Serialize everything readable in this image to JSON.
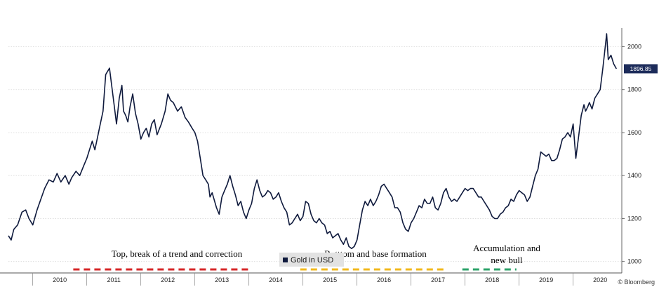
{
  "chart_data": {
    "type": "line",
    "title": "",
    "xlabel": "",
    "ylabel": "",
    "ylim": [
      950,
      2080
    ],
    "xlim": [
      2009.55,
      2020.9
    ],
    "y_ticks": [
      1000,
      1200,
      1400,
      1600,
      1800,
      2000
    ],
    "y_tick_labels": [
      "1000",
      "1200",
      "1400",
      "1600",
      "1800",
      "2000"
    ],
    "x_year_labels": [
      "2010",
      "2011",
      "2012",
      "2013",
      "2014",
      "2015",
      "2016",
      "2017",
      "2018",
      "2019",
      "2020"
    ],
    "grid": true,
    "legend": "bottom-center",
    "last_value_label": "1896.85",
    "series": [
      {
        "name": "Gold in USD",
        "color": "#0f1a3d",
        "x": [
          2009.55,
          2009.6,
          2009.65,
          2009.72,
          2009.8,
          2009.87,
          2009.93,
          2010.0,
          2010.08,
          2010.15,
          2010.22,
          2010.3,
          2010.38,
          2010.45,
          2010.52,
          2010.6,
          2010.67,
          2010.72,
          2010.8,
          2010.87,
          2010.95,
          2011.0,
          2011.05,
          2011.1,
          2011.15,
          2011.2,
          2011.25,
          2011.3,
          2011.35,
          2011.42,
          2011.5,
          2011.55,
          2011.6,
          2011.65,
          2011.68,
          2011.72,
          2011.76,
          2011.8,
          2011.85,
          2011.9,
          2011.95,
          2012.0,
          2012.05,
          2012.1,
          2012.15,
          2012.2,
          2012.25,
          2012.3,
          2012.38,
          2012.45,
          2012.5,
          2012.55,
          2012.6,
          2012.68,
          2012.75,
          2012.82,
          2012.88,
          2012.95,
          2013.0,
          2013.05,
          2013.1,
          2013.15,
          2013.2,
          2013.25,
          2013.28,
          2013.32,
          2013.4,
          2013.45,
          2013.5,
          2013.55,
          2013.6,
          2013.65,
          2013.7,
          2013.75,
          2013.8,
          2013.85,
          2013.9,
          2013.95,
          2014.0,
          2014.05,
          2014.1,
          2014.15,
          2014.2,
          2014.25,
          2014.3,
          2014.35,
          2014.4,
          2014.45,
          2014.5,
          2014.55,
          2014.6,
          2014.65,
          2014.7,
          2014.75,
          2014.8,
          2014.85,
          2014.9,
          2014.95,
          2015.0,
          2015.05,
          2015.1,
          2015.15,
          2015.2,
          2015.25,
          2015.3,
          2015.35,
          2015.4,
          2015.45,
          2015.5,
          2015.55,
          2015.6,
          2015.65,
          2015.7,
          2015.75,
          2015.8,
          2015.85,
          2015.9,
          2015.95,
          2016.0,
          2016.05,
          2016.1,
          2016.15,
          2016.2,
          2016.25,
          2016.3,
          2016.35,
          2016.4,
          2016.45,
          2016.5,
          2016.55,
          2016.6,
          2016.65,
          2016.7,
          2016.75,
          2016.8,
          2016.85,
          2016.9,
          2016.95,
          2017.0,
          2017.05,
          2017.1,
          2017.15,
          2017.2,
          2017.25,
          2017.3,
          2017.35,
          2017.4,
          2017.45,
          2017.5,
          2017.55,
          2017.6,
          2017.65,
          2017.7,
          2017.75,
          2017.8,
          2017.85,
          2017.9,
          2017.95,
          2018.0,
          2018.05,
          2018.1,
          2018.15,
          2018.2,
          2018.25,
          2018.3,
          2018.35,
          2018.4,
          2018.45,
          2018.5,
          2018.55,
          2018.6,
          2018.65,
          2018.7,
          2018.75,
          2018.8,
          2018.85,
          2018.9,
          2018.95,
          2019.0,
          2019.05,
          2019.1,
          2019.15,
          2019.2,
          2019.25,
          2019.3,
          2019.35,
          2019.4,
          2019.45,
          2019.5,
          2019.55,
          2019.6,
          2019.65,
          2019.7,
          2019.75,
          2019.8,
          2019.85,
          2019.9,
          2019.95,
          2020.0,
          2020.05,
          2020.1,
          2020.15,
          2020.2,
          2020.23,
          2020.27,
          2020.3,
          2020.35,
          2020.4,
          2020.45,
          2020.5,
          2020.55,
          2020.58,
          2020.62,
          2020.65,
          2020.7,
          2020.75,
          2020.8
        ],
        "values": [
          1120,
          1100,
          1150,
          1170,
          1230,
          1240,
          1200,
          1170,
          1240,
          1290,
          1340,
          1380,
          1370,
          1410,
          1370,
          1400,
          1360,
          1390,
          1420,
          1400,
          1450,
          1480,
          1520,
          1560,
          1520,
          1580,
          1640,
          1700,
          1870,
          1900,
          1740,
          1640,
          1760,
          1820,
          1700,
          1680,
          1650,
          1720,
          1780,
          1690,
          1640,
          1570,
          1600,
          1620,
          1580,
          1640,
          1660,
          1590,
          1640,
          1700,
          1780,
          1750,
          1740,
          1700,
          1720,
          1670,
          1650,
          1620,
          1600,
          1560,
          1480,
          1400,
          1380,
          1360,
          1300,
          1320,
          1250,
          1220,
          1300,
          1330,
          1360,
          1400,
          1350,
          1310,
          1260,
          1280,
          1230,
          1200,
          1240,
          1270,
          1340,
          1380,
          1330,
          1300,
          1310,
          1330,
          1320,
          1290,
          1300,
          1320,
          1280,
          1250,
          1230,
          1170,
          1180,
          1200,
          1220,
          1190,
          1210,
          1280,
          1270,
          1220,
          1190,
          1180,
          1200,
          1180,
          1170,
          1130,
          1140,
          1110,
          1120,
          1130,
          1100,
          1080,
          1110,
          1070,
          1060,
          1070,
          1100,
          1170,
          1240,
          1280,
          1260,
          1290,
          1260,
          1280,
          1310,
          1350,
          1360,
          1340,
          1320,
          1300,
          1250,
          1250,
          1230,
          1180,
          1150,
          1140,
          1180,
          1200,
          1230,
          1260,
          1250,
          1290,
          1270,
          1270,
          1300,
          1250,
          1240,
          1270,
          1320,
          1340,
          1300,
          1280,
          1290,
          1280,
          1300,
          1320,
          1340,
          1330,
          1340,
          1340,
          1320,
          1300,
          1300,
          1280,
          1260,
          1240,
          1210,
          1200,
          1200,
          1220,
          1230,
          1250,
          1260,
          1290,
          1280,
          1310,
          1330,
          1320,
          1310,
          1280,
          1300,
          1350,
          1400,
          1430,
          1510,
          1500,
          1490,
          1500,
          1470,
          1470,
          1480,
          1520,
          1570,
          1580,
          1600,
          1580,
          1640,
          1480,
          1580,
          1680,
          1730,
          1700,
          1720,
          1740,
          1710,
          1760,
          1780,
          1800,
          1900,
          1970,
          2060,
          1940,
          1960,
          1920,
          1897
        ]
      }
    ],
    "annotations": [
      {
        "text": "Top, break of a trend and correction",
        "color": "#d62728"
      },
      {
        "text": "Botttom and base formation",
        "color": "#f2b81c"
      },
      {
        "text": "Accumulation and",
        "color": "#2ca36a"
      },
      {
        "text": "new bull",
        "color": "#2ca36a"
      }
    ],
    "phase_bars": [
      {
        "name": "correction",
        "color": "#d62728",
        "x_start": 2010.75,
        "x_end": 2014.05
      },
      {
        "name": "base",
        "color": "#f2b81c",
        "x_start": 2014.95,
        "x_end": 2017.6
      },
      {
        "name": "accumulation",
        "color": "#2ca36a",
        "x_start": 2017.95,
        "x_end": 2018.95
      }
    ]
  },
  "credit": "© Bloomberg"
}
